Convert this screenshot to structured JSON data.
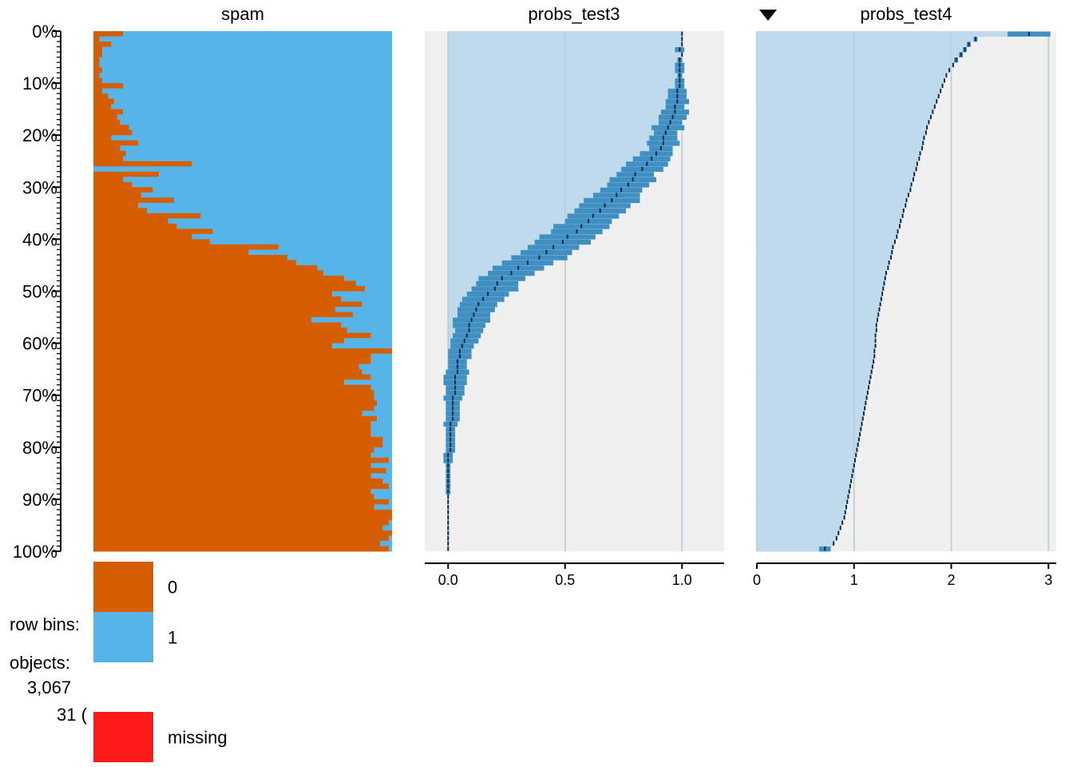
{
  "chart_data": {
    "type": "tableplot",
    "y_axis": {
      "ticks": [
        "0%",
        "10%",
        "20%",
        "30%",
        "40%",
        "50%",
        "60%",
        "70%",
        "80%",
        "90%",
        "100%"
      ]
    },
    "sort_indicator": "descending",
    "panels": [
      {
        "title": "spam",
        "kind": "categorical",
        "categories": [
          "0",
          "1"
        ],
        "colors": {
          "0": "#d55e00",
          "1": "#56b4e9"
        },
        "share_0_by_bin": [
          0.1,
          0.02,
          0.06,
          0.03,
          0.03,
          0.02,
          0.02,
          0.03,
          0.02,
          0.03,
          0.1,
          0.03,
          0.05,
          0.07,
          0.06,
          0.1,
          0.08,
          0.09,
          0.12,
          0.13,
          0.06,
          0.15,
          0.09,
          0.11,
          0.1,
          0.33,
          0.0,
          0.22,
          0.1,
          0.13,
          0.2,
          0.16,
          0.27,
          0.15,
          0.18,
          0.36,
          0.25,
          0.28,
          0.4,
          0.33,
          0.39,
          0.62,
          0.52,
          0.65,
          0.68,
          0.75,
          0.77,
          0.84,
          0.88,
          0.91,
          0.8,
          0.83,
          0.9,
          0.81,
          0.87,
          0.73,
          0.83,
          0.85,
          0.93,
          0.84,
          0.8,
          1.0,
          0.93,
          0.93,
          0.89,
          0.9,
          0.93,
          0.84,
          0.93,
          0.94,
          0.94,
          0.95,
          0.94,
          0.9,
          0.95,
          0.93,
          0.93,
          0.93,
          0.97,
          0.97,
          0.94,
          0.93,
          0.99,
          0.93,
          0.98,
          0.93,
          0.97,
          0.99,
          0.93,
          0.94,
          0.99,
          0.94,
          1.0,
          1.0,
          0.99,
          0.97,
          1.0,
          0.99,
          0.96,
          0.99
        ]
      },
      {
        "title": "probs_test3",
        "kind": "numeric",
        "x_ticks": [
          "0.0",
          "0.5",
          "1.0"
        ],
        "xlim": [
          -0.1,
          1.18
        ],
        "mean_by_bin": [
          1.0,
          1.0,
          1.0,
          0.99,
          1.0,
          0.99,
          0.99,
          0.99,
          0.99,
          0.99,
          0.99,
          0.98,
          0.98,
          0.98,
          0.97,
          0.97,
          0.96,
          0.95,
          0.94,
          0.93,
          0.92,
          0.92,
          0.91,
          0.89,
          0.87,
          0.85,
          0.83,
          0.8,
          0.79,
          0.77,
          0.74,
          0.72,
          0.7,
          0.67,
          0.65,
          0.62,
          0.6,
          0.57,
          0.55,
          0.51,
          0.49,
          0.45,
          0.42,
          0.39,
          0.34,
          0.3,
          0.27,
          0.23,
          0.21,
          0.2,
          0.17,
          0.15,
          0.13,
          0.12,
          0.11,
          0.1,
          0.09,
          0.09,
          0.08,
          0.07,
          0.06,
          0.05,
          0.05,
          0.04,
          0.04,
          0.04,
          0.03,
          0.03,
          0.03,
          0.03,
          0.02,
          0.02,
          0.02,
          0.02,
          0.02,
          0.01,
          0.01,
          0.01,
          0.01,
          0.01,
          0.01,
          0.0,
          0.0,
          0.0,
          0.0,
          0.0,
          0.0,
          0.0,
          0.0,
          0.0,
          0.0,
          0.0,
          0.0,
          0.0,
          0.0,
          0.0,
          0.0,
          0.0,
          0.0,
          0.0
        ],
        "sd_by_bin": [
          0.0,
          0.0,
          0.0,
          0.02,
          0.0,
          0.01,
          0.02,
          0.02,
          0.01,
          0.02,
          0.02,
          0.04,
          0.04,
          0.05,
          0.04,
          0.06,
          0.06,
          0.05,
          0.07,
          0.05,
          0.06,
          0.07,
          0.05,
          0.07,
          0.08,
          0.09,
          0.09,
          0.08,
          0.1,
          0.09,
          0.09,
          0.1,
          0.12,
          0.11,
          0.11,
          0.11,
          0.1,
          0.12,
          0.11,
          0.12,
          0.12,
          0.11,
          0.11,
          0.12,
          0.11,
          0.11,
          0.1,
          0.1,
          0.09,
          0.1,
          0.09,
          0.09,
          0.08,
          0.08,
          0.07,
          0.08,
          0.07,
          0.06,
          0.06,
          0.06,
          0.05,
          0.05,
          0.05,
          0.04,
          0.04,
          0.05,
          0.05,
          0.05,
          0.04,
          0.04,
          0.04,
          0.03,
          0.03,
          0.03,
          0.03,
          0.03,
          0.02,
          0.02,
          0.02,
          0.02,
          0.02,
          0.02,
          0.02,
          0.01,
          0.01,
          0.01,
          0.01,
          0.01,
          0.01,
          0.0,
          0.0,
          0.0,
          0.0,
          0.0,
          0.0,
          0.0,
          0.0,
          0.0,
          0.0,
          0.0
        ]
      },
      {
        "title": "probs_test4",
        "kind": "numeric",
        "x_ticks": [
          "0",
          "1",
          "2",
          "3"
        ],
        "xlim": [
          0,
          3.08
        ],
        "mean_by_bin": [
          2.8,
          2.25,
          2.18,
          2.14,
          2.1,
          2.05,
          2.02,
          1.98,
          1.95,
          1.93,
          1.91,
          1.89,
          1.87,
          1.85,
          1.83,
          1.81,
          1.79,
          1.77,
          1.75,
          1.74,
          1.72,
          1.71,
          1.7,
          1.68,
          1.67,
          1.65,
          1.64,
          1.62,
          1.61,
          1.59,
          1.58,
          1.56,
          1.54,
          1.53,
          1.51,
          1.5,
          1.48,
          1.47,
          1.45,
          1.44,
          1.42,
          1.4,
          1.39,
          1.38,
          1.36,
          1.35,
          1.33,
          1.32,
          1.31,
          1.3,
          1.29,
          1.28,
          1.27,
          1.26,
          1.25,
          1.24,
          1.23,
          1.23,
          1.22,
          1.22,
          1.22,
          1.21,
          1.21,
          1.2,
          1.19,
          1.18,
          1.17,
          1.16,
          1.15,
          1.14,
          1.13,
          1.12,
          1.11,
          1.1,
          1.09,
          1.08,
          1.07,
          1.06,
          1.05,
          1.04,
          1.03,
          1.02,
          1.01,
          1.0,
          0.99,
          0.98,
          0.97,
          0.96,
          0.95,
          0.94,
          0.93,
          0.92,
          0.91,
          0.9,
          0.88,
          0.86,
          0.84,
          0.82,
          0.79,
          0.7
        ]
      }
    ],
    "legend": {
      "items": [
        {
          "label": "0",
          "color": "#d55e00"
        },
        {
          "label": "1",
          "color": "#56b4e9"
        },
        {
          "label": "missing",
          "color": "#ff1a1a"
        }
      ]
    },
    "info": {
      "row_bins_label": "row bins:",
      "objects_label": "objects:",
      "objects_value": "3,067",
      "per_bin_value": "31 ("
    }
  }
}
